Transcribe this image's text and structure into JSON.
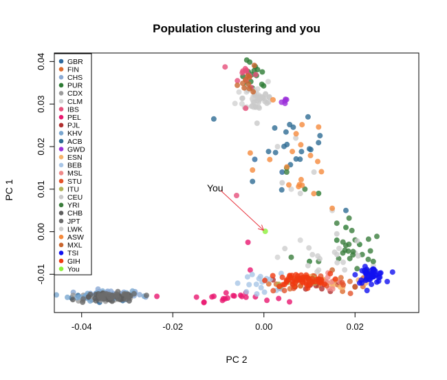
{
  "chart_data": {
    "type": "scatter",
    "title": "Population clustering and you",
    "xlabel": "PC 2",
    "ylabel": "PC 1",
    "xlim": [
      -0.046,
      0.034
    ],
    "ylim": [
      -0.019,
      0.042
    ],
    "xticks": [
      -0.04,
      -0.02,
      0.0,
      0.02
    ],
    "xtick_labels": [
      "-0.04",
      "-0.02",
      "0.00",
      "0.02"
    ],
    "yticks": [
      -0.01,
      0.0,
      0.01,
      0.02,
      0.03,
      0.04
    ],
    "ytick_labels": [
      "-0.01",
      "0.00",
      "0.01",
      "0.02",
      "0.03",
      "0.04"
    ],
    "grid": false,
    "legend_position": "top-left",
    "point_alpha": 0.8,
    "annotation": {
      "text": "You",
      "text_at": [
        -0.0125,
        0.0095
      ],
      "arrow_from": [
        -0.0095,
        0.0097
      ],
      "arrow_to": [
        0.0003,
        0.0001
      ]
    },
    "series": [
      {
        "name": "GBR",
        "color": "#2f6a9e",
        "clusters": [
          {
            "cx": -0.035,
            "cy": -0.0153,
            "sx": 0.0035,
            "sy": 0.0005,
            "n": 25
          }
        ],
        "points": [
          [
            0.004,
            0.014
          ],
          [
            -0.002,
            0.017
          ]
        ]
      },
      {
        "name": "FIN",
        "color": "#dc6b2f",
        "clusters": [
          {
            "cx": 0.013,
            "cy": -0.0122,
            "sx": 0.006,
            "sy": 0.0009,
            "n": 25
          }
        ],
        "points": []
      },
      {
        "name": "CHS",
        "color": "#8aa9d4",
        "clusters": [
          {
            "cx": -0.034,
            "cy": -0.015,
            "sx": 0.0038,
            "sy": 0.0006,
            "n": 40
          }
        ],
        "points": []
      },
      {
        "name": "PUR",
        "color": "#2c7a33",
        "clusters": [
          {
            "cx": -0.002,
            "cy": 0.036,
            "sx": 0.0015,
            "sy": 0.002,
            "n": 15
          }
        ],
        "points": [
          [
            0.005,
            0.015
          ],
          [
            0.012,
            0.009
          ],
          [
            0.018,
            0.001
          ],
          [
            0.021,
            -0.003
          ],
          [
            0.01,
            -0.007
          ],
          [
            0.016,
            -0.002
          ]
        ]
      },
      {
        "name": "CDX",
        "color": "#9a9a9a",
        "clusters": [
          {
            "cx": -0.035,
            "cy": -0.0155,
            "sx": 0.003,
            "sy": 0.0005,
            "n": 40
          }
        ],
        "points": []
      },
      {
        "name": "CLM",
        "color": "#d2d2d2",
        "clusters": [
          {
            "cx": -0.002,
            "cy": 0.032,
            "sx": 0.002,
            "sy": 0.0022,
            "n": 25
          }
        ],
        "points": [
          [
            0.006,
            0.01
          ],
          [
            0.015,
            0.005
          ],
          [
            0.008,
            -0.002
          ],
          [
            0.024,
            -0.008
          ],
          [
            0.003,
            -0.006
          ],
          [
            0.012,
            -0.009
          ]
        ]
      },
      {
        "name": "IBS",
        "color": "#e64f7a",
        "clusters": [
          {
            "cx": -0.004,
            "cy": 0.037,
            "sx": 0.0013,
            "sy": 0.0015,
            "n": 12
          }
        ],
        "points": [
          [
            -0.006,
            0.0085
          ],
          [
            -0.004,
            0.029
          ]
        ]
      },
      {
        "name": "PEL",
        "color": "#e8176f",
        "clusters": [
          {
            "cx": -0.008,
            "cy": -0.0155,
            "sx": 0.005,
            "sy": 0.0005,
            "n": 20
          }
        ],
        "points": [
          [
            -0.0235,
            -0.0152
          ],
          [
            -0.0035,
            -0.0025
          ],
          [
            -0.003,
            -0.009
          ]
        ]
      },
      {
        "name": "PJL",
        "color": "#b02f2f",
        "clusters": [
          {
            "cx": 0.011,
            "cy": -0.0125,
            "sx": 0.005,
            "sy": 0.001,
            "n": 15
          }
        ],
        "points": []
      },
      {
        "name": "KHV",
        "color": "#7ba7d0",
        "clusters": [
          {
            "cx": -0.036,
            "cy": -0.015,
            "sx": 0.0035,
            "sy": 0.0006,
            "n": 30
          }
        ],
        "points": []
      },
      {
        "name": "ACB",
        "color": "#2e6c93",
        "clusters": [
          {
            "cx": 0.007,
            "cy": 0.02,
            "sx": 0.003,
            "sy": 0.003,
            "n": 18
          }
        ],
        "points": [
          [
            -0.011,
            0.0265
          ],
          [
            -0.0025,
            0.0118
          ],
          [
            0.018,
            0.005
          ]
        ]
      },
      {
        "name": "GWD",
        "color": "#9b30d9",
        "clusters": [
          {
            "cx": 0.0045,
            "cy": 0.0305,
            "sx": 0.0006,
            "sy": 0.0008,
            "n": 5
          }
        ],
        "points": []
      },
      {
        "name": "ESN",
        "color": "#f6b26b",
        "clusters": [
          {
            "cx": 0.017,
            "cy": -0.0118,
            "sx": 0.004,
            "sy": 0.001,
            "n": 10
          }
        ],
        "points": []
      },
      {
        "name": "BEB",
        "color": "#a8c5e6",
        "clusters": [
          {
            "cx": 0.0,
            "cy": -0.012,
            "sx": 0.004,
            "sy": 0.001,
            "n": 20
          }
        ],
        "points": []
      },
      {
        "name": "MSL",
        "color": "#ef8a8a",
        "clusters": [
          {
            "cx": 0.013,
            "cy": -0.0118,
            "sx": 0.004,
            "sy": 0.0009,
            "n": 10
          }
        ],
        "points": []
      },
      {
        "name": "STU",
        "color": "#e4532a",
        "clusters": [
          {
            "cx": 0.01,
            "cy": -0.0122,
            "sx": 0.004,
            "sy": 0.0009,
            "n": 20
          }
        ],
        "points": []
      },
      {
        "name": "ITU",
        "color": "#b1b35a",
        "clusters": [
          {
            "cx": 0.008,
            "cy": -0.0118,
            "sx": 0.003,
            "sy": 0.0009,
            "n": 10
          }
        ],
        "points": []
      },
      {
        "name": "CEU",
        "color": "#c9c9c9",
        "clusters": [
          {
            "cx": -0.001,
            "cy": 0.0315,
            "sx": 0.0018,
            "sy": 0.002,
            "n": 25
          }
        ],
        "points": [
          [
            0.004,
            0.0115
          ],
          [
            -0.0015,
            0.0255
          ],
          [
            0.016,
            -0.0005
          ],
          [
            0.02,
            -0.005
          ]
        ]
      },
      {
        "name": "YRI",
        "color": "#3a7d3c",
        "clusters": [
          {
            "cx": 0.02,
            "cy": -0.005,
            "sx": 0.003,
            "sy": 0.0025,
            "n": 20
          }
        ],
        "points": [
          [
            0.005,
            0.014
          ],
          [
            0.009,
            0.01
          ],
          [
            0.016,
            0.002
          ],
          [
            0.024,
            -0.007
          ],
          [
            0.012,
            -0.007
          ],
          [
            0.006,
            -0.006
          ]
        ]
      },
      {
        "name": "CHB",
        "color": "#5e5e5e",
        "clusters": [
          {
            "cx": -0.034,
            "cy": -0.0155,
            "sx": 0.003,
            "sy": 0.0005,
            "n": 40
          }
        ],
        "points": []
      },
      {
        "name": "JPT",
        "color": "#6b6b6b",
        "clusters": [
          {
            "cx": -0.033,
            "cy": -0.0153,
            "sx": 0.003,
            "sy": 0.0005,
            "n": 30
          }
        ],
        "points": []
      },
      {
        "name": "LWK",
        "color": "#cdcdcd",
        "clusters": [
          {
            "cx": 0.016,
            "cy": -0.006,
            "sx": 0.004,
            "sy": 0.002,
            "n": 15
          }
        ],
        "points": [
          [
            0.008,
            0.009
          ],
          [
            0.011,
            0.014
          ],
          [
            0.003,
            0.02
          ],
          [
            0.007,
            0.022
          ]
        ]
      },
      {
        "name": "ASW",
        "color": "#f58a3c",
        "clusters": [
          {
            "cx": 0.008,
            "cy": 0.018,
            "sx": 0.003,
            "sy": 0.005,
            "n": 16
          }
        ],
        "points": [
          [
            -0.0025,
            0.0145
          ],
          [
            -0.003,
            0.0185
          ],
          [
            0.002,
            0.031
          ],
          [
            0.015,
            0.0055
          ]
        ]
      },
      {
        "name": "MXL",
        "color": "#c9662e",
        "clusters": [
          {
            "cx": -0.003,
            "cy": 0.0355,
            "sx": 0.0015,
            "sy": 0.0015,
            "n": 10
          }
        ],
        "points": [
          [
            0.015,
            -0.009
          ],
          [
            0.02,
            -0.013
          ]
        ]
      },
      {
        "name": "TSI",
        "color": "#1010f0",
        "clusters": [
          {
            "cx": 0.0235,
            "cy": -0.0102,
            "sx": 0.0015,
            "sy": 0.0009,
            "n": 45
          }
        ],
        "points": []
      },
      {
        "name": "GIH",
        "color": "#f03a10",
        "clusters": [
          {
            "cx": 0.0075,
            "cy": -0.0115,
            "sx": 0.0035,
            "sy": 0.0008,
            "n": 55
          }
        ],
        "points": []
      },
      {
        "name": "You",
        "color": "#8cf03a",
        "clusters": [],
        "points": [
          [
            0.0003,
            0.0001
          ]
        ]
      }
    ]
  }
}
